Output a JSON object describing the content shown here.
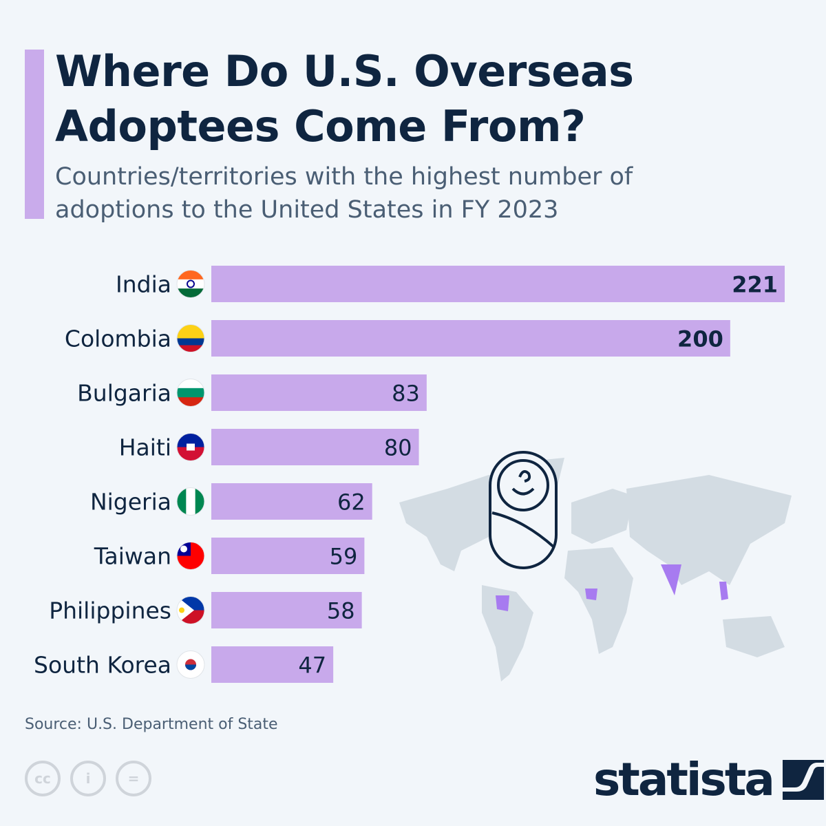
{
  "title": "Where Do U.S. Overseas Adoptees Come From?",
  "subtitle": "Countries/territories with the highest number of adoptions to the United States in FY 2023",
  "source": "Source: U.S. Department of State",
  "brand": "statista",
  "colors": {
    "bar": "#c8a9eb",
    "text": "#0f2540",
    "background": "#f2f6fa",
    "map": "#d3dce3",
    "map_highlight": "#a77bf0"
  },
  "icons": [
    "cc-icon",
    "attribution-icon",
    "no-derivatives-icon",
    "baby-icon",
    "world-map"
  ],
  "chart_data": {
    "type": "bar",
    "orientation": "horizontal",
    "title": "Where Do U.S. Overseas Adoptees Come From?",
    "subtitle": "Countries/territories with the highest number of adoptions to the United States in FY 2023",
    "categories": [
      "India",
      "Colombia",
      "Bulgaria",
      "Haiti",
      "Nigeria",
      "Taiwan",
      "Philippines",
      "South Korea"
    ],
    "values": [
      221,
      200,
      83,
      80,
      62,
      59,
      58,
      47
    ],
    "xlim": [
      0,
      221
    ],
    "grid": false,
    "data_labels": true
  }
}
